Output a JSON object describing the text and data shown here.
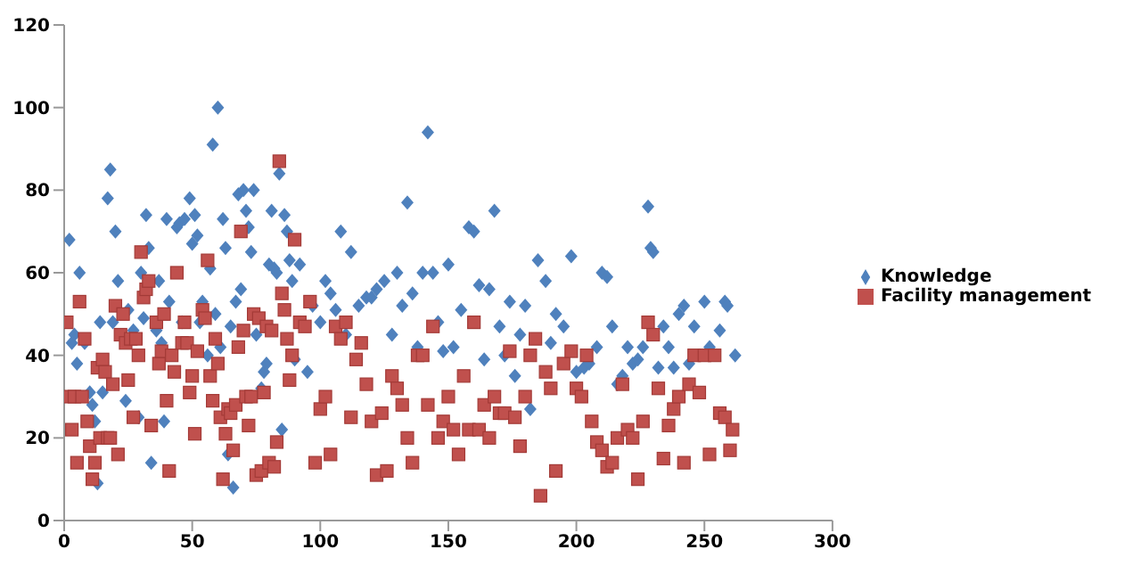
{
  "chart_data": {
    "type": "scatter",
    "xlim": [
      0,
      300
    ],
    "xticks": [
      0,
      50,
      100,
      150,
      200,
      250,
      300
    ],
    "ylim": [
      0,
      120
    ],
    "yticks": [
      0,
      20,
      40,
      60,
      80,
      100,
      120
    ],
    "grid": false,
    "legend": "right",
    "series": [
      {
        "name": "Knowledge",
        "color": "#4f81bd",
        "marker": "diamond",
        "x": [
          2,
          3,
          4,
          5,
          6,
          8,
          10,
          11,
          12,
          13,
          14,
          15,
          17,
          18,
          19,
          20,
          21,
          24,
          25,
          27,
          29,
          30,
          31,
          32,
          33,
          34,
          36,
          37,
          38,
          39,
          40,
          41,
          44,
          45,
          46,
          47,
          49,
          50,
          51,
          52,
          53,
          54,
          56,
          57,
          58,
          59,
          60,
          61,
          62,
          63,
          64,
          65,
          66,
          67,
          68,
          69,
          70,
          71,
          72,
          73,
          74,
          75,
          77,
          78,
          79,
          80,
          81,
          82,
          83,
          84,
          85,
          86,
          87,
          88,
          89,
          90,
          92,
          95,
          97,
          100,
          102,
          104,
          106,
          108,
          110,
          112,
          115,
          118,
          120,
          122,
          125,
          128,
          130,
          132,
          134,
          136,
          138,
          140,
          142,
          144,
          146,
          148,
          150,
          152,
          155,
          158,
          160,
          162,
          164,
          166,
          168,
          170,
          172,
          174,
          176,
          178,
          180,
          182,
          185,
          188,
          190,
          192,
          195,
          198,
          200,
          203,
          205,
          208,
          210,
          212,
          214,
          216,
          218,
          220,
          222,
          224,
          226,
          228,
          229,
          230,
          232,
          234,
          236,
          238,
          240,
          242,
          244,
          246,
          250,
          252,
          256,
          258,
          259,
          262
        ],
        "values": [
          68,
          43,
          45,
          38,
          60,
          43,
          31,
          28,
          24,
          9,
          48,
          31,
          78,
          85,
          48,
          70,
          58,
          29,
          51,
          46,
          25,
          60,
          49,
          74,
          66,
          14,
          46,
          58,
          43,
          24,
          73,
          53,
          71,
          72,
          48,
          73,
          78,
          67,
          74,
          69,
          48,
          53,
          40,
          61,
          91,
          50,
          100,
          42,
          73,
          66,
          16,
          47,
          8,
          53,
          79,
          56,
          80,
          75,
          71,
          65,
          80,
          45,
          32,
          36,
          38,
          62,
          75,
          61,
          60,
          84,
          22,
          74,
          70,
          63,
          58,
          39,
          62,
          36,
          52,
          48,
          58,
          55,
          51,
          70,
          45,
          65,
          52,
          54,
          54,
          56,
          58,
          45,
          60,
          52,
          77,
          55,
          42,
          60,
          94,
          60,
          48,
          41,
          62,
          42,
          51,
          71,
          70,
          57,
          39,
          56,
          75,
          47,
          40,
          53,
          35,
          45,
          52,
          27,
          63,
          58,
          43,
          50,
          47,
          64,
          36,
          37,
          38,
          42,
          60,
          59,
          47,
          33,
          35,
          42,
          38,
          39,
          42,
          76,
          66,
          65,
          37,
          47,
          42,
          37,
          50,
          52,
          38,
          47,
          53,
          42,
          46,
          53,
          52,
          40
        ]
      },
      {
        "name": "Facility management",
        "color": "#c0504d",
        "marker": "square",
        "x": [
          1,
          2,
          3,
          4,
          5,
          6,
          7,
          8,
          9,
          10,
          11,
          12,
          13,
          14,
          15,
          16,
          17,
          18,
          19,
          20,
          21,
          22,
          23,
          24,
          25,
          26,
          27,
          28,
          29,
          30,
          31,
          32,
          33,
          34,
          36,
          37,
          38,
          39,
          40,
          41,
          42,
          43,
          44,
          46,
          47,
          48,
          49,
          50,
          51,
          52,
          54,
          55,
          56,
          57,
          58,
          59,
          60,
          61,
          62,
          63,
          64,
          65,
          66,
          67,
          68,
          69,
          70,
          71,
          72,
          73,
          74,
          75,
          76,
          77,
          78,
          79,
          80,
          81,
          82,
          83,
          84,
          85,
          86,
          87,
          88,
          89,
          90,
          92,
          94,
          96,
          98,
          100,
          102,
          104,
          106,
          108,
          110,
          112,
          114,
          116,
          118,
          120,
          122,
          124,
          126,
          128,
          130,
          132,
          134,
          136,
          138,
          140,
          142,
          144,
          146,
          148,
          150,
          152,
          154,
          156,
          158,
          160,
          162,
          164,
          166,
          168,
          170,
          172,
          174,
          176,
          178,
          180,
          182,
          184,
          186,
          188,
          190,
          192,
          195,
          198,
          200,
          202,
          204,
          206,
          208,
          210,
          212,
          214,
          216,
          218,
          220,
          222,
          224,
          226,
          228,
          230,
          232,
          234,
          236,
          238,
          240,
          242,
          244,
          246,
          248,
          250,
          252,
          254,
          256,
          258,
          260,
          261
        ],
        "values": [
          48,
          30,
          22,
          30,
          14,
          53,
          30,
          44,
          24,
          18,
          10,
          14,
          37,
          20,
          39,
          36,
          20,
          20,
          33,
          52,
          16,
          45,
          50,
          43,
          34,
          44,
          25,
          44,
          40,
          65,
          54,
          56,
          58,
          23,
          48,
          38,
          41,
          50,
          29,
          12,
          40,
          36,
          60,
          43,
          48,
          43,
          31,
          35,
          21,
          41,
          51,
          49,
          63,
          35,
          29,
          44,
          38,
          25,
          10,
          21,
          27,
          26,
          17,
          28,
          42,
          70,
          46,
          30,
          23,
          30,
          50,
          11,
          49,
          12,
          31,
          47,
          14,
          46,
          13,
          19,
          87,
          55,
          51,
          44,
          34,
          40,
          68,
          48,
          47,
          53,
          14,
          27,
          30,
          16,
          47,
          44,
          48,
          25,
          39,
          43,
          33,
          24,
          11,
          26,
          12,
          35,
          32,
          28,
          20,
          14,
          40,
          40,
          28,
          47,
          20,
          24,
          30,
          22,
          16,
          35,
          22,
          48,
          22,
          28,
          20,
          30,
          26,
          26,
          41,
          25,
          18,
          30,
          40,
          44,
          6,
          36,
          32,
          12,
          38,
          41,
          32,
          30,
          40,
          24,
          19,
          17,
          13,
          14,
          20,
          33,
          22,
          20,
          10,
          24,
          48,
          45,
          32,
          15,
          23,
          27,
          30,
          14,
          33,
          40,
          31,
          40,
          16,
          40,
          26,
          25,
          17,
          22
        ]
      }
    ]
  }
}
